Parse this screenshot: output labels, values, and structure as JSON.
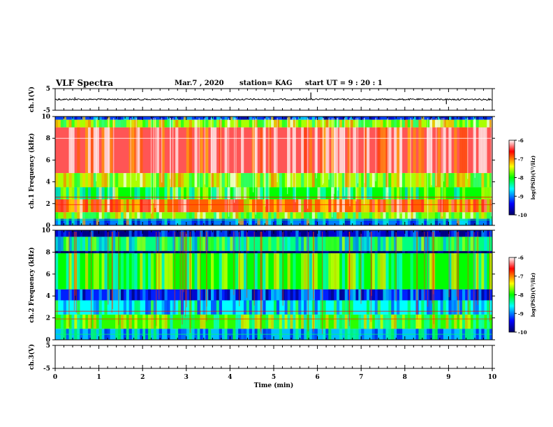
{
  "header": {
    "title": "VLF Spectra",
    "date": "Mar.7 , 2020",
    "station": "station= KAG",
    "start": "start UT = 9 : 20 : 1"
  },
  "colors": {
    "background": "#ffffff",
    "axis": "#000000",
    "colormap": [
      "#000066",
      "#0000ff",
      "#00ffff",
      "#00ff00",
      "#ffff00",
      "#ff0000",
      "#ffffff"
    ]
  },
  "chart_data": [
    {
      "type": "line",
      "panel": "ch1_waveform",
      "ylabel": "ch.1(V)",
      "ylim": [
        -5,
        5
      ],
      "yticks": [
        5,
        -5
      ],
      "xlim": [
        0,
        10
      ],
      "baseline": 0,
      "spikes": [
        {
          "x": 0.08,
          "y": 0.5
        },
        {
          "x": 0.45,
          "y": 1.0
        },
        {
          "x": 1.15,
          "y": 0.4
        },
        {
          "x": 2.1,
          "y": 0.4
        },
        {
          "x": 3.3,
          "y": 0.5
        },
        {
          "x": 4.55,
          "y": 0.5
        },
        {
          "x": 5.75,
          "y": 0.8
        },
        {
          "x": 5.85,
          "y": 3.2
        },
        {
          "x": 7.2,
          "y": 0.4
        },
        {
          "x": 8.95,
          "y": -2.2
        }
      ]
    },
    {
      "type": "heatmap",
      "panel": "ch1_spectrogram",
      "ylabel": "ch.1 Frequency (kHz)",
      "ylim": [
        0,
        10
      ],
      "yticks": [
        0,
        2,
        4,
        6,
        8,
        10
      ],
      "xlim": [
        0,
        10
      ],
      "colorbar": {
        "label": "log(PSD)(V²/Hz)",
        "range": [
          -10,
          -6
        ],
        "ticks": [
          -6,
          -7,
          -8,
          -9,
          -10
        ]
      },
      "bands": [
        {
          "f": [
            9.7,
            10
          ],
          "level": -9.2
        },
        {
          "f": [
            9.0,
            9.7
          ],
          "level": -7.6
        },
        {
          "f": [
            4.8,
            9.0
          ],
          "level": -6.4
        },
        {
          "f": [
            3.5,
            4.8
          ],
          "level": -7.6
        },
        {
          "f": [
            2.4,
            3.5
          ],
          "level": -8.0
        },
        {
          "f": [
            1.2,
            2.4
          ],
          "level": -6.9
        },
        {
          "f": [
            0.6,
            1.2
          ],
          "level": -7.7
        },
        {
          "f": [
            0.0,
            0.6
          ],
          "level": -9.0
        }
      ]
    },
    {
      "type": "heatmap",
      "panel": "ch2_spectrogram",
      "ylabel": "ch.2 Frequency (kHz)",
      "ylim": [
        0,
        10
      ],
      "yticks": [
        0,
        2,
        4,
        6,
        8,
        10
      ],
      "xlim": [
        0,
        10
      ],
      "colorbar": {
        "label": "log(PSD)(V²/Hz)",
        "range": [
          -10,
          -6
        ],
        "ticks": [
          -6,
          -7,
          -8,
          -9,
          -10
        ]
      },
      "bands": [
        {
          "f": [
            9.4,
            10
          ],
          "level": -9.6
        },
        {
          "f": [
            8.1,
            9.4
          ],
          "level": -8.3
        },
        {
          "f": [
            7.9,
            8.1
          ],
          "level": -10
        },
        {
          "f": [
            4.6,
            7.9
          ],
          "level": -8.0
        },
        {
          "f": [
            3.6,
            4.6
          ],
          "level": -9.3
        },
        {
          "f": [
            2.3,
            3.6
          ],
          "level": -8.6
        },
        {
          "f": [
            1.0,
            2.3
          ],
          "level": -7.9
        },
        {
          "f": [
            0.0,
            1.0
          ],
          "level": -8.8
        }
      ]
    },
    {
      "type": "line",
      "panel": "ch3_waveform",
      "ylabel": "ch.3(V)",
      "ylim": [
        -5,
        5
      ],
      "yticks": [
        5,
        -5
      ],
      "xlim": [
        0,
        10
      ],
      "xlabel": "Time (min)",
      "xticks": [
        0,
        1,
        2,
        3,
        4,
        5,
        6,
        7,
        8,
        9,
        10
      ],
      "baseline": 5
    }
  ]
}
